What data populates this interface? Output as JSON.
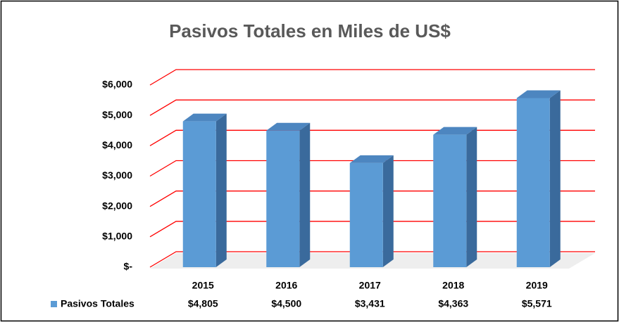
{
  "chart_data": {
    "type": "bar",
    "title": "Pasivos Totales en Miles de US$",
    "categories": [
      "2015",
      "2016",
      "2017",
      "2018",
      "2019"
    ],
    "series": [
      {
        "name": "Pasivos Totales",
        "color": "#5b9bd5",
        "values": [
          4805,
          4500,
          3431,
          4363,
          5571
        ],
        "value_labels": [
          "$4,805",
          "$4,500",
          "$3,431",
          "$4,363",
          "$5,571"
        ]
      }
    ],
    "ylim": [
      0,
      6000
    ],
    "yticks": [
      {
        "value": 0,
        "label": "$-"
      },
      {
        "value": 1000,
        "label": "$1,000"
      },
      {
        "value": 2000,
        "label": "$2,000"
      },
      {
        "value": 3000,
        "label": "$3,000"
      },
      {
        "value": 4000,
        "label": "$4,000"
      },
      {
        "value": 5000,
        "label": "$5,000"
      },
      {
        "value": 6000,
        "label": "$6,000"
      }
    ],
    "grid": true,
    "grid_color": "#ff0000"
  }
}
